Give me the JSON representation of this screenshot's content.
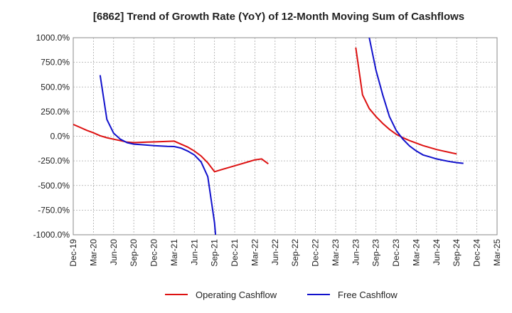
{
  "chart_data": {
    "type": "line",
    "title": "[6862]  Trend of Growth Rate (YoY) of 12-Month Moving Sum of Cashflows",
    "xlabel": "",
    "ylabel": "",
    "x_ticks": [
      "Dec-19",
      "Mar-20",
      "Jun-20",
      "Sep-20",
      "Dec-20",
      "Mar-21",
      "Jun-21",
      "Sep-21",
      "Dec-21",
      "Mar-22",
      "Jun-22",
      "Sep-22",
      "Dec-22",
      "Mar-23",
      "Jun-23",
      "Sep-23",
      "Dec-23",
      "Mar-24",
      "Jun-24",
      "Sep-24",
      "Dec-24",
      "Mar-25"
    ],
    "y_ticks": [
      "1000.0%",
      "750.0%",
      "500.0%",
      "250.0%",
      "0.0%",
      "-250.0%",
      "-500.0%",
      "-750.0%",
      "-1000.0%"
    ],
    "ylim": [
      -1000,
      1000
    ],
    "grid": true,
    "legend_position": "bottom",
    "series": [
      {
        "name": "Operating Cashflow",
        "color": "#dd1111",
        "points": [
          [
            "Dec-19",
            120
          ],
          [
            "Jan-20",
            90
          ],
          [
            "Feb-20",
            60
          ],
          [
            "Mar-20",
            35
          ],
          [
            "Apr-20",
            5
          ],
          [
            "May-20",
            -15
          ],
          [
            "Jun-20",
            -30
          ],
          [
            "Jul-20",
            -45
          ],
          [
            "Aug-20",
            -60
          ],
          [
            "Sep-20",
            -65
          ],
          [
            "Oct-20",
            -62
          ],
          [
            "Nov-20",
            -60
          ],
          [
            "Dec-20",
            -58
          ],
          [
            "Jan-21",
            -55
          ],
          [
            "Feb-21",
            -52
          ],
          [
            "Mar-21",
            -50
          ],
          [
            "Apr-21",
            -80
          ],
          [
            "May-21",
            -110
          ],
          [
            "Jun-21",
            -150
          ],
          [
            "Jul-21",
            -200
          ],
          [
            "Aug-21",
            -270
          ],
          [
            "Sep-21",
            -360
          ],
          [
            "Oct-21",
            -340
          ],
          [
            "Nov-21",
            -320
          ],
          [
            "Dec-21",
            -300
          ],
          [
            "Jan-22",
            -280
          ],
          [
            "Feb-22",
            -260
          ],
          [
            "Mar-22",
            -240
          ],
          [
            "Apr-22",
            -230
          ],
          [
            "May-22",
            -280
          ],
          [
            "Jun-23",
            900
          ],
          [
            "Jul-23",
            420
          ],
          [
            "Aug-23",
            280
          ],
          [
            "Sep-23",
            200
          ],
          [
            "Oct-23",
            130
          ],
          [
            "Nov-23",
            70
          ],
          [
            "Dec-23",
            20
          ],
          [
            "Jan-24",
            -15
          ],
          [
            "Feb-24",
            -45
          ],
          [
            "Mar-24",
            -70
          ],
          [
            "Apr-24",
            -95
          ],
          [
            "May-24",
            -115
          ],
          [
            "Jun-24",
            -135
          ],
          [
            "Jul-24",
            -150
          ],
          [
            "Aug-24",
            -165
          ],
          [
            "Sep-24",
            -180
          ]
        ]
      },
      {
        "name": "Free Cashflow",
        "color": "#1111cc",
        "points": [
          [
            "Apr-20",
            620
          ],
          [
            "May-20",
            170
          ],
          [
            "Jun-20",
            30
          ],
          [
            "Jul-20",
            -30
          ],
          [
            "Aug-20",
            -65
          ],
          [
            "Sep-20",
            -80
          ],
          [
            "Oct-20",
            -85
          ],
          [
            "Nov-20",
            -90
          ],
          [
            "Dec-20",
            -95
          ],
          [
            "Jan-21",
            -100
          ],
          [
            "Feb-21",
            -103
          ],
          [
            "Mar-21",
            -105
          ],
          [
            "Apr-21",
            -120
          ],
          [
            "May-21",
            -150
          ],
          [
            "Jun-21",
            -190
          ],
          [
            "Jul-21",
            -260
          ],
          [
            "Aug-21",
            -410
          ],
          [
            "Sep-21",
            -880
          ],
          [
            "Sep-21+",
            -1000
          ],
          [
            "Aug-23",
            1000
          ],
          [
            "Sep-23",
            670
          ],
          [
            "Oct-23",
            420
          ],
          [
            "Nov-23",
            200
          ],
          [
            "Dec-23",
            60
          ],
          [
            "Jan-24",
            -30
          ],
          [
            "Feb-24",
            -100
          ],
          [
            "Mar-24",
            -150
          ],
          [
            "Apr-24",
            -190
          ],
          [
            "May-24",
            -210
          ],
          [
            "Jun-24",
            -230
          ],
          [
            "Jul-24",
            -245
          ],
          [
            "Aug-24",
            -258
          ],
          [
            "Sep-24",
            -268
          ],
          [
            "Oct-24",
            -275
          ]
        ]
      }
    ]
  }
}
